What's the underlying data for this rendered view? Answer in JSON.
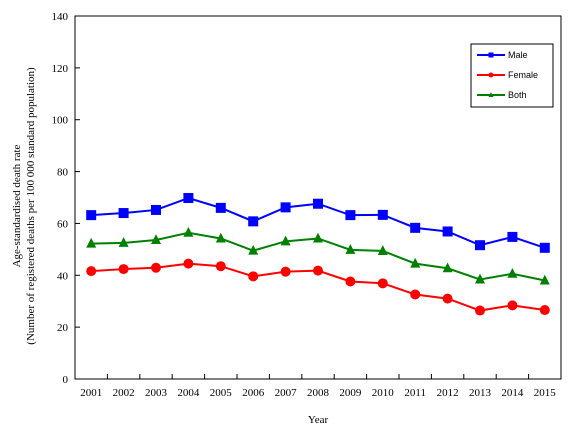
{
  "chart_data": {
    "type": "line",
    "xlabel": "Year",
    "ylabel_lines": [
      "Age-standardised death rate",
      "(Number of registered deaths per 100 000 standard population)"
    ],
    "categories": [
      "2001",
      "2002",
      "2003",
      "2004",
      "2005",
      "2006",
      "2007",
      "2008",
      "2009",
      "2010",
      "2011",
      "2012",
      "2013",
      "2014",
      "2015"
    ],
    "ylim": [
      0,
      140
    ],
    "yticks": [
      0,
      20,
      40,
      60,
      80,
      100,
      120,
      140
    ],
    "grid": false,
    "legend_position": "top-right",
    "series": [
      {
        "name": "Male",
        "color": "#0000ff",
        "marker": "square",
        "values": [
          63.2,
          64.0,
          65.2,
          69.8,
          66.0,
          60.8,
          66.2,
          67.6,
          63.2,
          63.3,
          58.3,
          56.9,
          51.6,
          54.8,
          50.6
        ]
      },
      {
        "name": "Female",
        "color": "#ff0000",
        "marker": "circle",
        "values": [
          41.6,
          42.4,
          42.9,
          44.5,
          43.5,
          39.6,
          41.4,
          41.8,
          37.6,
          36.9,
          32.6,
          31.0,
          26.4,
          28.4,
          26.6
        ]
      },
      {
        "name": "Both",
        "color": "#008000",
        "marker": "triangle",
        "values": [
          52.2,
          52.5,
          53.6,
          56.4,
          54.2,
          49.5,
          53.1,
          54.2,
          49.8,
          49.4,
          44.5,
          42.7,
          38.4,
          40.6,
          38.0
        ]
      }
    ]
  }
}
